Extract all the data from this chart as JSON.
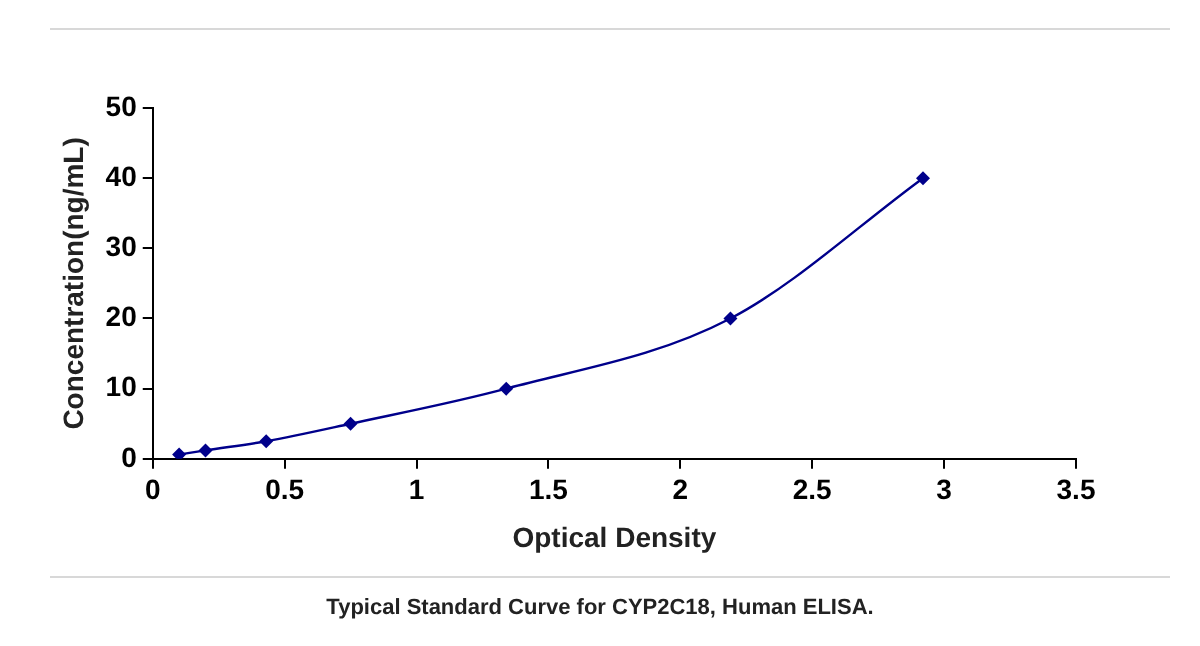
{
  "chart_data": {
    "type": "line",
    "xlabel": "Optical Density",
    "ylabel": "Concentration(ng/mL)",
    "x": [
      0.1,
      0.2,
      0.43,
      0.75,
      1.34,
      2.19,
      2.92
    ],
    "series": [
      {
        "color": "#00008b",
        "values": [
          0.6,
          1.2,
          2.5,
          5,
          10,
          20,
          40
        ]
      }
    ],
    "xlim": [
      0,
      3.5
    ],
    "xticks": [
      0,
      0.5,
      1,
      1.5,
      2,
      2.5,
      3,
      3.5
    ],
    "ylim": [
      0,
      50
    ],
    "yticks": [
      0,
      10,
      20,
      30,
      40,
      50
    ],
    "grid": false,
    "legend": false,
    "marker": "diamond",
    "line_style": "solid",
    "annotations": [
      "Typical Standard Curve for CYP2C18, Human ELISA."
    ]
  }
}
